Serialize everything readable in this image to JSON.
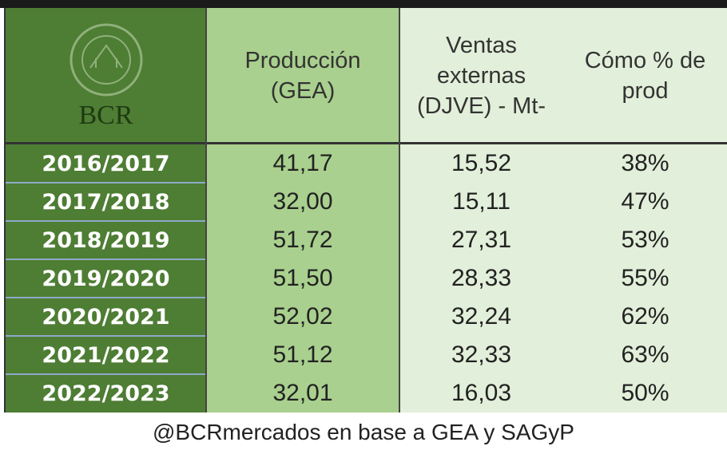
{
  "header": {
    "logo_text": "BCR",
    "columns": [
      [
        "Producción",
        "(GEA)"
      ],
      [
        "Ventas",
        "externas",
        "(DJVE) - Mt-"
      ],
      [
        "Cómo % de",
        "prod"
      ]
    ]
  },
  "table": {
    "rows": [
      [
        "2016/2017",
        "41,17",
        "15,52",
        "38%"
      ],
      [
        "2017/2018",
        "32,00",
        "15,11",
        "47%"
      ],
      [
        "2018/2019",
        "51,72",
        "27,31",
        "53%"
      ],
      [
        "2019/2020",
        "51,50",
        "28,33",
        "55%"
      ],
      [
        "2020/2021",
        "52,02",
        "32,24",
        "62%"
      ],
      [
        "2021/2022",
        "51,12",
        "32,33",
        "63%"
      ],
      [
        "2022/2023",
        "32,01",
        "16,03",
        "50%"
      ]
    ]
  },
  "footer": "@BCRmercados en base a GEA y SAGyP"
}
